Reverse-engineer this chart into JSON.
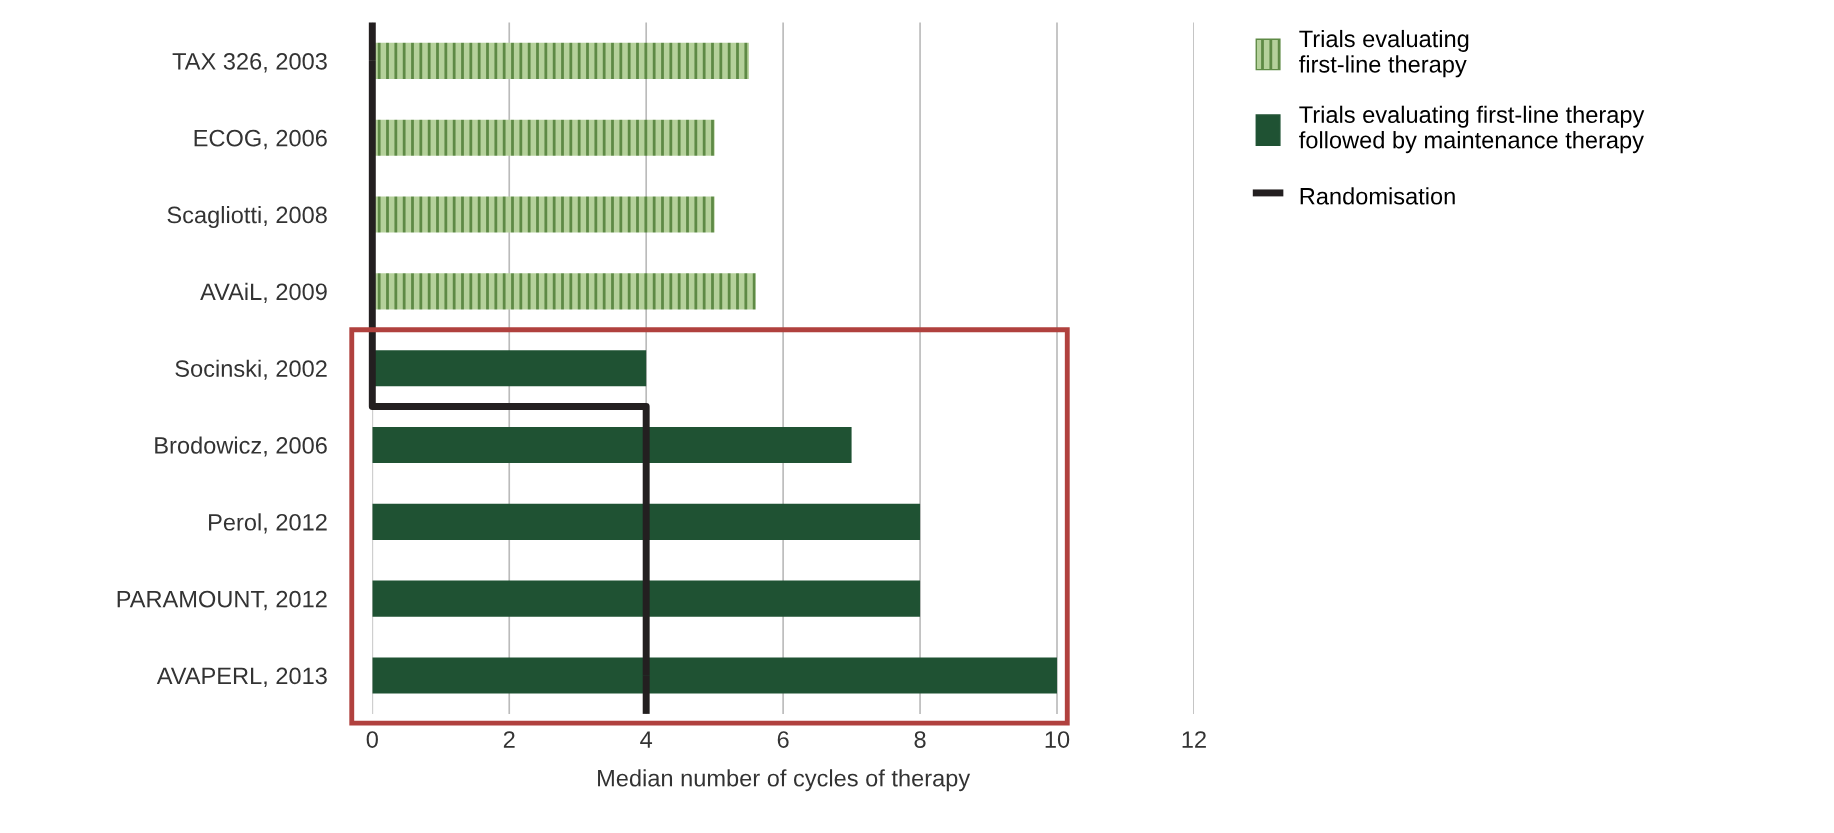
{
  "chart_data": {
    "type": "bar",
    "orientation": "horizontal",
    "categories": [
      "TAX 326, 2003",
      "ECOG, 2006",
      "Scagliotti, 2008",
      "AVAiL, 2009",
      "Socinski, 2002",
      "Brodowicz, 2006",
      "Perol, 2012",
      "PARAMOUNT, 2012",
      "AVAPERL, 2013"
    ],
    "series": [
      {
        "name": "Trials evaluating\nfirst-line therapy",
        "color": "#8db36a",
        "values": [
          5.5,
          5,
          5,
          5.6,
          null,
          null,
          null,
          null,
          null
        ]
      },
      {
        "name": "Trials evaluating first-line therapy\nfollowed by maintenance therapy",
        "color": "#1f5233",
        "values": [
          null,
          null,
          null,
          null,
          4,
          7,
          8,
          8,
          10
        ]
      },
      {
        "name": "Randomisation",
        "type": "step",
        "color": "#231f20",
        "values": [
          0,
          0,
          0,
          0,
          0,
          4,
          4,
          4,
          4
        ]
      }
    ],
    "xlabel": "Median number of cycles of therapy",
    "xlim": [
      0,
      12
    ],
    "xticks": [
      0,
      2,
      4,
      6,
      8,
      10,
      12
    ],
    "grid": "x",
    "legend": "right"
  }
}
